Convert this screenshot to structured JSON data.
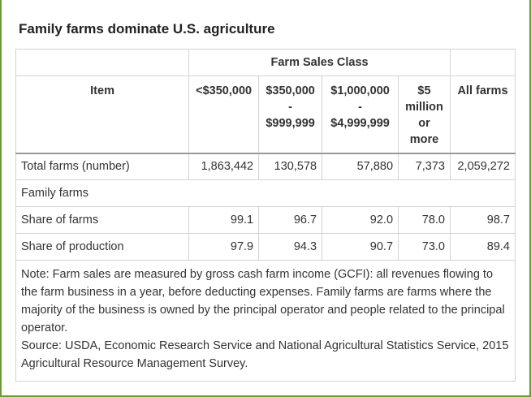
{
  "title": "Family farms dominate U.S. agriculture",
  "table": {
    "group_header": "Farm Sales Class",
    "columns": {
      "item": "Item",
      "c1": "<$350,000",
      "c2_line1": "$350,000",
      "c2_line2": "-",
      "c2_line3": "$999,999",
      "c3_line1": "$1,000,000",
      "c3_line2": "-",
      "c3_line3": "$4,999,999",
      "c4_line1": "$5",
      "c4_line2": "million",
      "c4_line3": "or",
      "c4_line4": "more",
      "c5": "All farms"
    },
    "rows": [
      {
        "label": "Total farms (number)",
        "values": [
          "1,863,442",
          "130,578",
          "57,880",
          "7,373",
          "2,059,272"
        ]
      },
      {
        "label": "Family farms",
        "values": [
          "",
          "",
          "",
          "",
          ""
        ]
      },
      {
        "label": "Share of farms",
        "values": [
          "99.1",
          "96.7",
          "92.0",
          "78.0",
          "98.7"
        ]
      },
      {
        "label": "Share of production",
        "values": [
          "97.9",
          "94.3",
          "90.7",
          "73.0",
          "89.4"
        ]
      }
    ],
    "note": "Note: Farm sales are measured by gross cash farm income (GCFI): all revenues flowing to the farm business in a year, before deducting expenses. Family farms are farms where the majority of the business is owned by the principal operator and people related to the principal operator.",
    "source": "Source: USDA, Economic Research Service and National Agricultural Statistics Service, 2015 Agricultural Resource Management Survey."
  }
}
